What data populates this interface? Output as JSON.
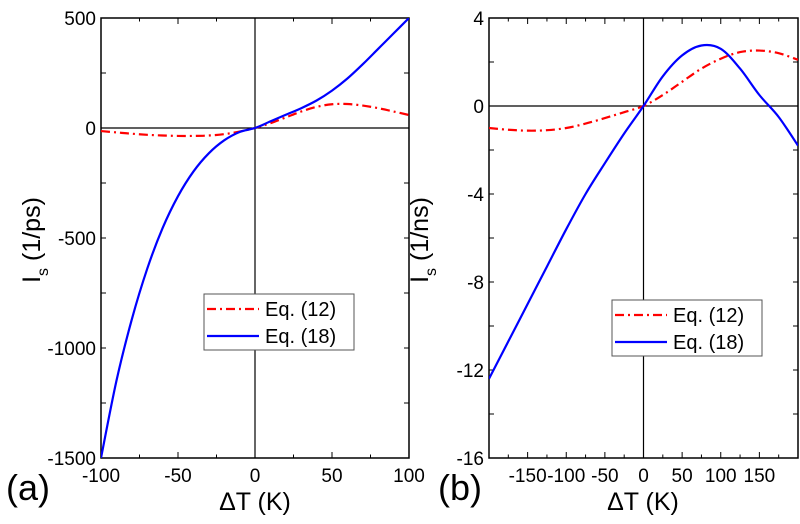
{
  "colors": {
    "eq12": "#ff0000",
    "eq18": "#0000ff",
    "axis": "#000000"
  },
  "chart_data": [
    {
      "panel": "(a)",
      "type": "line",
      "title": "",
      "xlabel": "ΔT (K)",
      "ylabel": "I_s (1/ps)",
      "ylabel_main": "I",
      "ylabel_sub": "s",
      "ylabel_unit": " (1/ps)",
      "xlim": [
        -100,
        100
      ],
      "ylim": [
        -1500,
        500
      ],
      "xticks": [
        "-100",
        "-50",
        "0",
        "50",
        "100"
      ],
      "yticks": [
        "500",
        "0",
        "-500",
        "-1000",
        "-1500"
      ],
      "legend": [
        "Eq. (12)",
        "Eq. (18)"
      ],
      "legend_position": "center",
      "x": [
        -100,
        -90,
        -80,
        -70,
        -60,
        -50,
        -40,
        -30,
        -20,
        -10,
        0,
        10,
        20,
        30,
        40,
        50,
        60,
        70,
        80,
        90,
        100
      ],
      "series": [
        {
          "name": "Eq. (12)",
          "style": "dash-dot",
          "color": "#ff0000",
          "values": [
            -14,
            -20,
            -26,
            -31,
            -34,
            -36,
            -36,
            -34,
            -28,
            -16,
            0,
            22,
            48,
            75,
            96,
            108,
            109,
            102,
            90,
            75,
            59
          ]
        },
        {
          "name": "Eq. (18)",
          "style": "solid",
          "color": "#0000ff",
          "values": [
            -1500,
            -1150,
            -870,
            -640,
            -455,
            -310,
            -198,
            -115,
            -56,
            -18,
            0,
            30,
            60,
            90,
            125,
            170,
            225,
            290,
            360,
            430,
            500
          ]
        }
      ]
    },
    {
      "panel": "(b)",
      "type": "line",
      "title": "",
      "xlabel": "ΔT (K)",
      "ylabel": "I_s (1/ns)",
      "ylabel_main": "I",
      "ylabel_sub": "s",
      "ylabel_unit": " (1/ns)",
      "xlim": [
        -200,
        200
      ],
      "ylim": [
        -16,
        4
      ],
      "xticks": [
        "-150",
        "-100",
        "-50",
        "0",
        "50",
        "100",
        "150"
      ],
      "yticks": [
        "4",
        "0",
        "-4",
        "-8",
        "-12",
        "-16"
      ],
      "legend": [
        "Eq. (12)",
        "Eq. (18)"
      ],
      "legend_position": "center-right",
      "x": [
        -200,
        -175,
        -150,
        -125,
        -100,
        -75,
        -50,
        -25,
        0,
        25,
        50,
        75,
        100,
        125,
        150,
        175,
        200
      ],
      "series": [
        {
          "name": "Eq. (12)",
          "style": "dash-dot",
          "color": "#ff0000",
          "values": [
            -1.0,
            -1.08,
            -1.12,
            -1.1,
            -1.0,
            -0.8,
            -0.55,
            -0.28,
            0,
            0.5,
            1.1,
            1.7,
            2.15,
            2.45,
            2.52,
            2.4,
            2.1
          ]
        },
        {
          "name": "Eq. (18)",
          "style": "solid",
          "color": "#0000ff",
          "values": [
            -12.4,
            -10.7,
            -9.0,
            -7.3,
            -5.6,
            -4.0,
            -2.6,
            -1.25,
            0,
            1.35,
            2.3,
            2.75,
            2.6,
            1.7,
            0.5,
            -0.5,
            -1.8
          ]
        }
      ]
    }
  ]
}
